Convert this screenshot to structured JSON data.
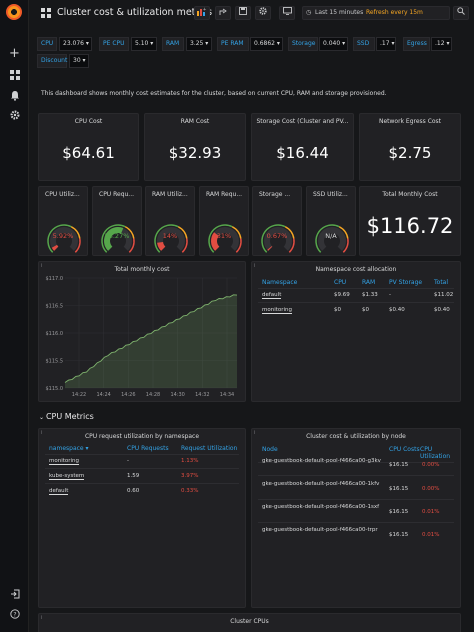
{
  "dashboard": {
    "title": "Cluster cost & utilization metrics",
    "time_range": "Last 15 minutes",
    "refresh": "Refresh every 15m",
    "description": "This dashboard shows monthly cost estimates for the cluster, based on current CPU, RAM and storage provisioned."
  },
  "variables": [
    {
      "label": "CPU",
      "value": "23.076"
    },
    {
      "label": "PE CPU",
      "value": "5.10"
    },
    {
      "label": "RAM",
      "value": "3.25"
    },
    {
      "label": "PE RAM",
      "value": "0.6862"
    },
    {
      "label": "Storage",
      "value": "0.040"
    },
    {
      "label": "SSD",
      "value": ".17"
    },
    {
      "label": "Egress",
      "value": ".12"
    },
    {
      "label": "Discount",
      "value": "30"
    }
  ],
  "stats": [
    {
      "title": "CPU Cost",
      "value": "$64.61"
    },
    {
      "title": "RAM Cost",
      "value": "$32.93"
    },
    {
      "title": "Storage Cost (Cluster and PV...",
      "value": "$16.44"
    },
    {
      "title": "Network Egress Cost",
      "value": "$2.75"
    }
  ],
  "gauges": [
    {
      "title": "CPU Utiliz...",
      "value": "5.92%",
      "level": 0.0592
    },
    {
      "title": "CPU Requ...",
      "value": "58.27%",
      "level": 0.5827
    },
    {
      "title": "RAM Utiliz...",
      "value": "14%",
      "level": 0.14
    },
    {
      "title": "RAM Requ...",
      "value": "31%",
      "level": 0.31
    },
    {
      "title": "Storage ...",
      "value": "0.67%",
      "level": 0.0067
    },
    {
      "title": "SSD Utiliz...",
      "value": "N/A",
      "level": 0
    }
  ],
  "total_cost": {
    "title": "Total Monthly Cost",
    "value": "$116.72"
  },
  "colors": {
    "accent": "#33a2e5",
    "orange": "#f5a623",
    "red": "#e24d42",
    "green": "#56a64b",
    "line": "#7eb26d"
  },
  "chart_data": {
    "type": "area",
    "title": "Total monthly cost",
    "x": [
      "14:20",
      "14:22",
      "14:24",
      "14:26",
      "14:28",
      "14:30",
      "14:32",
      "14:34",
      "14:35"
    ],
    "y_ticks": [
      "$115.0",
      "$115.5",
      "$116.0",
      "$116.5",
      "$117.0"
    ],
    "x_ticks": [
      "14:22",
      "14:24",
      "14:26",
      "14:28",
      "14:30",
      "14:32",
      "14:34"
    ],
    "series": [
      {
        "values": [
          115.1,
          115.3,
          115.6,
          115.8,
          116.0,
          116.2,
          116.4,
          116.6,
          116.7
        ]
      }
    ],
    "ylim": [
      115.0,
      117.0
    ],
    "grid": true
  },
  "namespace_table": {
    "title": "Namespace cost allocation",
    "headers": [
      "Namespace",
      "CPU",
      "RAM",
      "PV Storage",
      "Total"
    ],
    "rows": [
      [
        "default",
        "$9.69",
        "$1.33",
        "-",
        "$11.02"
      ],
      [
        "monitoring",
        "$0",
        "$0",
        "$0.40",
        "$0.40"
      ]
    ]
  },
  "cpu_row_title": "CPU Metrics",
  "cpu_request_table": {
    "title": "CPU request utilization by namespace",
    "headers": [
      "namespace",
      "CPU Requests",
      "Request Utilization"
    ],
    "rows": [
      [
        "monitoring",
        "-",
        "1.13%"
      ],
      [
        "kube-system",
        "1.59",
        "3.97%"
      ],
      [
        "default",
        "0.60",
        "0.33%"
      ]
    ]
  },
  "node_table": {
    "title": "Cluster cost & utilization by node",
    "headers": [
      "Node",
      "CPU Costs",
      "CPU Utilization"
    ],
    "rows": [
      [
        "gke-guestbook-default-pool-f466ca00-g3kv",
        "$16.15",
        "0.00%"
      ],
      [
        "gke-guestbook-default-pool-f466ca00-1kfv",
        "$16.15",
        "0.00%"
      ],
      [
        "gke-guestbook-default-pool-f466ca00-1sxf",
        "$16.15",
        "0.01%"
      ],
      [
        "gke-guestbook-default-pool-f466ca00-trpr",
        "$16.15",
        "0.01%"
      ]
    ]
  },
  "cluster_cpus_title": "Cluster CPUs"
}
